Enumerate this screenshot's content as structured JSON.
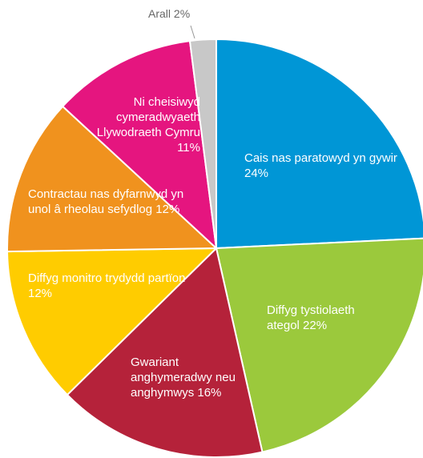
{
  "chart_data": {
    "type": "pie",
    "categories": [
      "Cais nas paratowyd yn gywir",
      "Diffyg tystiolaeth ategol",
      "Gwariant anghymeradwy neu anghymwys",
      "Diffyg monitro trydydd partïon",
      "Contractau nas dyfarnwyd yn unol â rheolau sefydlog",
      "Ni cheisiwyd cymeradwyaeth Llywodraeth Cymru",
      "Arall"
    ],
    "values": [
      24,
      22,
      16,
      12,
      12,
      11,
      2
    ],
    "value_labels": [
      "24%",
      "22%",
      "16%",
      "12%",
      "12%",
      "11%",
      "2%"
    ],
    "colors": [
      "#0096d6",
      "#9bc93c",
      "#b5223a",
      "#ffcc00",
      "#f0921e",
      "#e5157f",
      "#c8c8c8"
    ]
  }
}
